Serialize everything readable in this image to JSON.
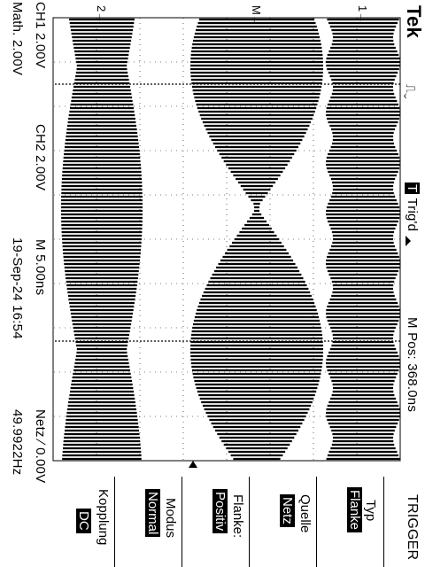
{
  "header": {
    "brand": "Tek",
    "trigger_status": "Trig'd",
    "trigger_status_glyph": "T",
    "m_pos": "M Pos: 368.0ns"
  },
  "menu": {
    "title": "TRIGGER",
    "items": [
      {
        "label": "Typ",
        "value": "Flanke"
      },
      {
        "label": "Quelle",
        "value": "Netz"
      },
      {
        "label": "Flanke:",
        "value": "Positiv"
      },
      {
        "label": "Modus",
        "value": "Normal"
      },
      {
        "label": "Kopplung",
        "value": "DC"
      }
    ]
  },
  "footer": {
    "ch1": "CH1  2.00V",
    "ch2": "CH2  2.00V",
    "timebase": "M 5.00ns",
    "trigger": "Netz  ∕  0.00V",
    "math": "Math. 2.00V",
    "date": "19-Sep-24 16:54",
    "frequency": "49.9922Hz"
  },
  "markers": {
    "ch1": "1",
    "ch2": "2",
    "math": "M"
  },
  "colors": {
    "background": "#ffffff",
    "foreground": "#000000"
  }
}
